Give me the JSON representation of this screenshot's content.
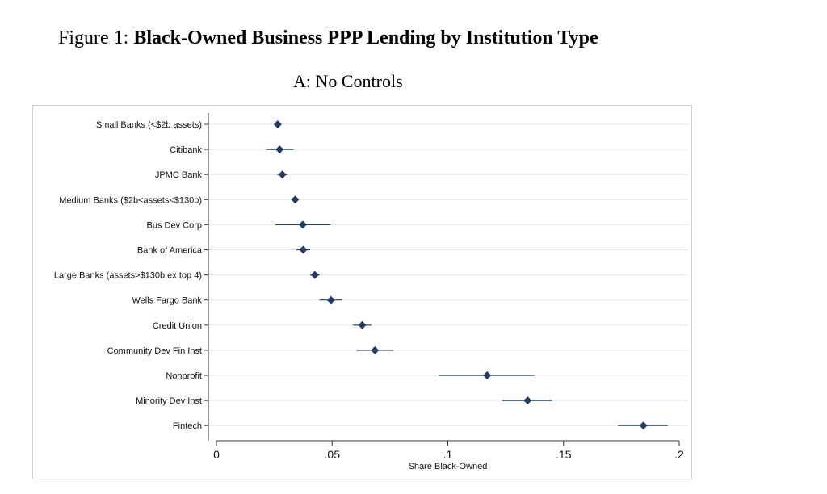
{
  "figure": {
    "prefix": "Figure 1: ",
    "title": "Black-Owned Business PPP Lending by Institution Type",
    "panel": "A: No Controls"
  },
  "chart_data": {
    "type": "scatter",
    "orientation": "horizontal",
    "subtitle": "A: No Controls",
    "xlabel": "Share Black-Owned",
    "xlim": [
      0,
      0.2
    ],
    "xticks": [
      {
        "value": 0,
        "label": "0"
      },
      {
        "value": 0.05,
        "label": ".05"
      },
      {
        "value": 0.1,
        "label": ".1"
      },
      {
        "value": 0.15,
        "label": ".15"
      },
      {
        "value": 0.2,
        "label": ".2"
      }
    ],
    "grid": true,
    "marker_color": "#1f3d66",
    "categories": [
      "Small Banks (<$2b assets)",
      "Citibank",
      "JPMC Bank",
      "Medium Banks ($2b<assets<$130b)",
      "Bus Dev Corp",
      "Bank of America",
      "Large Banks (assets>$130b ex top 4)",
      "Wells Fargo Bank",
      "Credit Union",
      "Community Dev Fin Inst",
      "Nonprofit",
      "Minority Dev Inst",
      "Fintech"
    ],
    "estimates": [
      0.0265,
      0.0273,
      0.0285,
      0.034,
      0.0373,
      0.0375,
      0.0425,
      0.0495,
      0.063,
      0.0685,
      0.117,
      0.1345,
      0.1845
    ],
    "ci_low": [
      0.0255,
      0.0215,
      0.0263,
      0.033,
      0.0255,
      0.0345,
      0.0405,
      0.0445,
      0.059,
      0.0605,
      0.096,
      0.1235,
      0.1735
    ],
    "ci_high": [
      0.0275,
      0.0333,
      0.0305,
      0.035,
      0.0493,
      0.0405,
      0.0445,
      0.0545,
      0.067,
      0.0765,
      0.1375,
      0.145,
      0.195
    ]
  }
}
